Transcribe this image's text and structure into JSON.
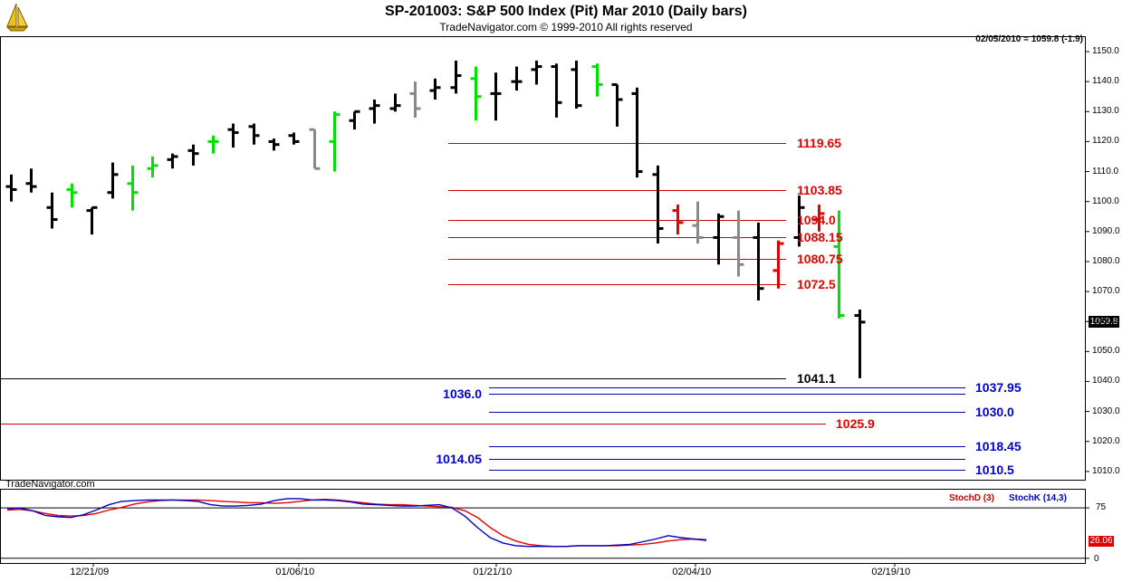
{
  "header": {
    "title": "SP-201003:  S&P 500 Index (Pit) Mar 2010  (Daily bars)",
    "subtitle": "TradeNavigator.com © 1999-2010 All rights reserved",
    "quote": "02/05/2010 = 1059.8 (-1.9)"
  },
  "watermark": "TradeNavigator.com",
  "colors": {
    "up": "#00e000",
    "down": "#e00000",
    "neutral": "#000000",
    "gray": "#888888",
    "red_line": "#cc0000",
    "blue_line": "#0000aa",
    "stoch_d": "#e00000",
    "stoch_k": "#0000c0"
  },
  "chart_data": [
    {
      "type": "ohlc",
      "title": "SP-201003:  S&P 500 Index (Pit) Mar 2010  (Daily bars)",
      "y_ticks": [
        "1150.0",
        "1140.0",
        "1130.0",
        "1120.0",
        "1110.0",
        "1100.0",
        "1090.0",
        "1080.0",
        "1070.0",
        "1060.0",
        "1050.0",
        "1040.0",
        "1030.0",
        "1020.0",
        "1010.0"
      ],
      "ylim": [
        1007,
        1157
      ],
      "x_ticks": [
        "12/21/09",
        "01/06/10",
        "01/21/10",
        "02/04/10",
        "02/19/10"
      ],
      "last_price": "1059.8",
      "bars": [
        {
          "o": 1105,
          "h": 1109,
          "l": 1100,
          "c": 1104,
          "col": "black"
        },
        {
          "o": 1106,
          "h": 1111,
          "l": 1103,
          "c": 1105,
          "col": "black"
        },
        {
          "o": 1098,
          "h": 1103,
          "l": 1091,
          "c": 1094,
          "col": "black"
        },
        {
          "o": 1104,
          "h": 1106,
          "l": 1098,
          "c": 1103,
          "col": "green"
        },
        {
          "o": 1097,
          "h": 1098,
          "l": 1089,
          "c": 1098,
          "col": "black"
        },
        {
          "o": 1103,
          "h": 1113,
          "l": 1101,
          "c": 1109,
          "col": "black"
        },
        {
          "o": 1106,
          "h": 1112,
          "l": 1097,
          "c": 1103,
          "col": "green"
        },
        {
          "o": 1111,
          "h": 1115,
          "l": 1108,
          "c": 1112,
          "col": "green"
        },
        {
          "o": 1114,
          "h": 1116,
          "l": 1111,
          "c": 1115,
          "col": "black"
        },
        {
          "o": 1117,
          "h": 1119,
          "l": 1112,
          "c": 1116,
          "col": "black"
        },
        {
          "o": 1120,
          "h": 1122,
          "l": 1116,
          "c": 1120,
          "col": "green"
        },
        {
          "o": 1124,
          "h": 1126,
          "l": 1118,
          "c": 1123,
          "col": "black"
        },
        {
          "o": 1125,
          "h": 1126,
          "l": 1119,
          "c": 1122,
          "col": "black"
        },
        {
          "o": 1120,
          "h": 1121,
          "l": 1117,
          "c": 1119,
          "col": "black"
        },
        {
          "o": 1122,
          "h": 1123,
          "l": 1119,
          "c": 1120,
          "col": "black"
        },
        {
          "o": 1124,
          "h": 1124,
          "l": 1111,
          "c": 1111,
          "col": "gray"
        },
        {
          "o": 1120,
          "h": 1130,
          "l": 1110,
          "c": 1129,
          "col": "green"
        },
        {
          "o": 1127,
          "h": 1130,
          "l": 1124,
          "c": 1130,
          "col": "black"
        },
        {
          "o": 1131,
          "h": 1134,
          "l": 1126,
          "c": 1132,
          "col": "black"
        },
        {
          "o": 1131,
          "h": 1136,
          "l": 1130,
          "c": 1132,
          "col": "black"
        },
        {
          "o": 1136,
          "h": 1140,
          "l": 1128,
          "c": 1131,
          "col": "gray"
        },
        {
          "o": 1137,
          "h": 1141,
          "l": 1134,
          "c": 1138,
          "col": "black"
        },
        {
          "o": 1138,
          "h": 1147,
          "l": 1136,
          "c": 1142,
          "col": "black"
        },
        {
          "o": 1141,
          "h": 1145,
          "l": 1127,
          "c": 1135,
          "col": "green"
        },
        {
          "o": 1136,
          "h": 1143,
          "l": 1127,
          "c": 1136,
          "col": "black"
        },
        {
          "o": 1140,
          "h": 1145,
          "l": 1137,
          "c": 1140,
          "col": "black"
        },
        {
          "o": 1144,
          "h": 1147,
          "l": 1139,
          "c": 1145,
          "col": "black"
        },
        {
          "o": 1145,
          "h": 1146,
          "l": 1128,
          "c": 1133,
          "col": "black"
        },
        {
          "o": 1144,
          "h": 1147,
          "l": 1131,
          "c": 1132,
          "col": "black"
        },
        {
          "o": 1145,
          "h": 1146,
          "l": 1135,
          "c": 1139,
          "col": "green"
        },
        {
          "o": 1139,
          "h": 1139,
          "l": 1125,
          "c": 1134,
          "col": "black"
        },
        {
          "o": 1136,
          "h": 1138,
          "l": 1108,
          "c": 1110,
          "col": "black"
        },
        {
          "o": 1109,
          "h": 1112,
          "l": 1086,
          "c": 1091,
          "col": "black"
        },
        {
          "o": 1097,
          "h": 1099,
          "l": 1089,
          "c": 1093,
          "col": "red"
        },
        {
          "o": 1092,
          "h": 1100,
          "l": 1086,
          "c": 1088,
          "col": "gray"
        },
        {
          "o": 1088,
          "h": 1096,
          "l": 1079,
          "c": 1095,
          "col": "black"
        },
        {
          "o": 1088,
          "h": 1097,
          "l": 1075,
          "c": 1079,
          "col": "gray"
        },
        {
          "o": 1088,
          "h": 1093,
          "l": 1067,
          "c": 1071,
          "col": "black"
        },
        {
          "o": 1077,
          "h": 1087,
          "l": 1071,
          "c": 1086,
          "col": "red"
        },
        {
          "o": 1088,
          "h": 1102,
          "l": 1085,
          "c": 1098,
          "col": "black"
        },
        {
          "o": 1094,
          "h": 1099,
          "l": 1090,
          "c": 1096,
          "col": "red"
        },
        {
          "o": 1085,
          "h": 1097,
          "l": 1061,
          "c": 1062,
          "col": "green"
        },
        {
          "o": 1062,
          "h": 1064,
          "l": 1041.1,
          "c": 1059.8,
          "col": "black"
        }
      ],
      "levels": [
        {
          "label": "1119.65",
          "value": 1119.65,
          "color": "red",
          "span": "mid"
        },
        {
          "label": "1103.85",
          "value": 1103.85,
          "color": "red",
          "span": "mid"
        },
        {
          "label": "1094.0",
          "value": 1094.0,
          "color": "red",
          "span": "mid"
        },
        {
          "label": "1088.15",
          "value": 1088.15,
          "color": "red",
          "span": "mid"
        },
        {
          "label": "1080.75",
          "value": 1080.75,
          "color": "red",
          "span": "mid"
        },
        {
          "label": "1072.5",
          "value": 1072.5,
          "color": "red",
          "span": "mid"
        },
        {
          "label": "1041.1",
          "value": 1041.1,
          "color": "black",
          "span": "full"
        },
        {
          "label": "1037.95",
          "value": 1037.95,
          "color": "blue",
          "span": "right"
        },
        {
          "label": "1036.0",
          "value": 1036.0,
          "color": "blue",
          "span": "left"
        },
        {
          "label": "1030.0",
          "value": 1030.0,
          "color": "blue",
          "span": "right"
        },
        {
          "label": "1025.9",
          "value": 1025.9,
          "color": "red",
          "span": "wide"
        },
        {
          "label": "1018.45",
          "value": 1018.45,
          "color": "blue",
          "span": "right"
        },
        {
          "label": "1014.05",
          "value": 1014.05,
          "color": "blue",
          "span": "left"
        },
        {
          "label": "1010.5",
          "value": 1010.5,
          "color": "blue",
          "span": "right"
        }
      ]
    },
    {
      "type": "line",
      "title": "",
      "legend": [
        "StochD (3)",
        "StochK (14,3)"
      ],
      "y_ticks": [
        "75",
        "0"
      ],
      "ylim": [
        -5,
        100
      ],
      "last_value": "26.06",
      "series": [
        {
          "name": "StochD (3)",
          "values": [
            71,
            72,
            70,
            66,
            63,
            62,
            63,
            66,
            71,
            75,
            80,
            83,
            85,
            86,
            86,
            86,
            85,
            84,
            83,
            82,
            82,
            81,
            82,
            84,
            86,
            87,
            86,
            84,
            82,
            80,
            79,
            79,
            78,
            77,
            76,
            75,
            70,
            60,
            45,
            33,
            25,
            20,
            18,
            17,
            17,
            18,
            18,
            18,
            18,
            19,
            20,
            22,
            25,
            27,
            28,
            27
          ]
        },
        {
          "name": "StochK (14,3)",
          "values": [
            73,
            74,
            70,
            63,
            61,
            60,
            64,
            71,
            79,
            84,
            85,
            86,
            86,
            86,
            85,
            84,
            79,
            77,
            77,
            78,
            80,
            85,
            88,
            88,
            86,
            86,
            85,
            83,
            80,
            79,
            78,
            77,
            77,
            78,
            79,
            74,
            62,
            45,
            30,
            22,
            18,
            17,
            17,
            17,
            17,
            18,
            18,
            18,
            19,
            20,
            24,
            28,
            33,
            30,
            28,
            26
          ]
        }
      ]
    }
  ]
}
